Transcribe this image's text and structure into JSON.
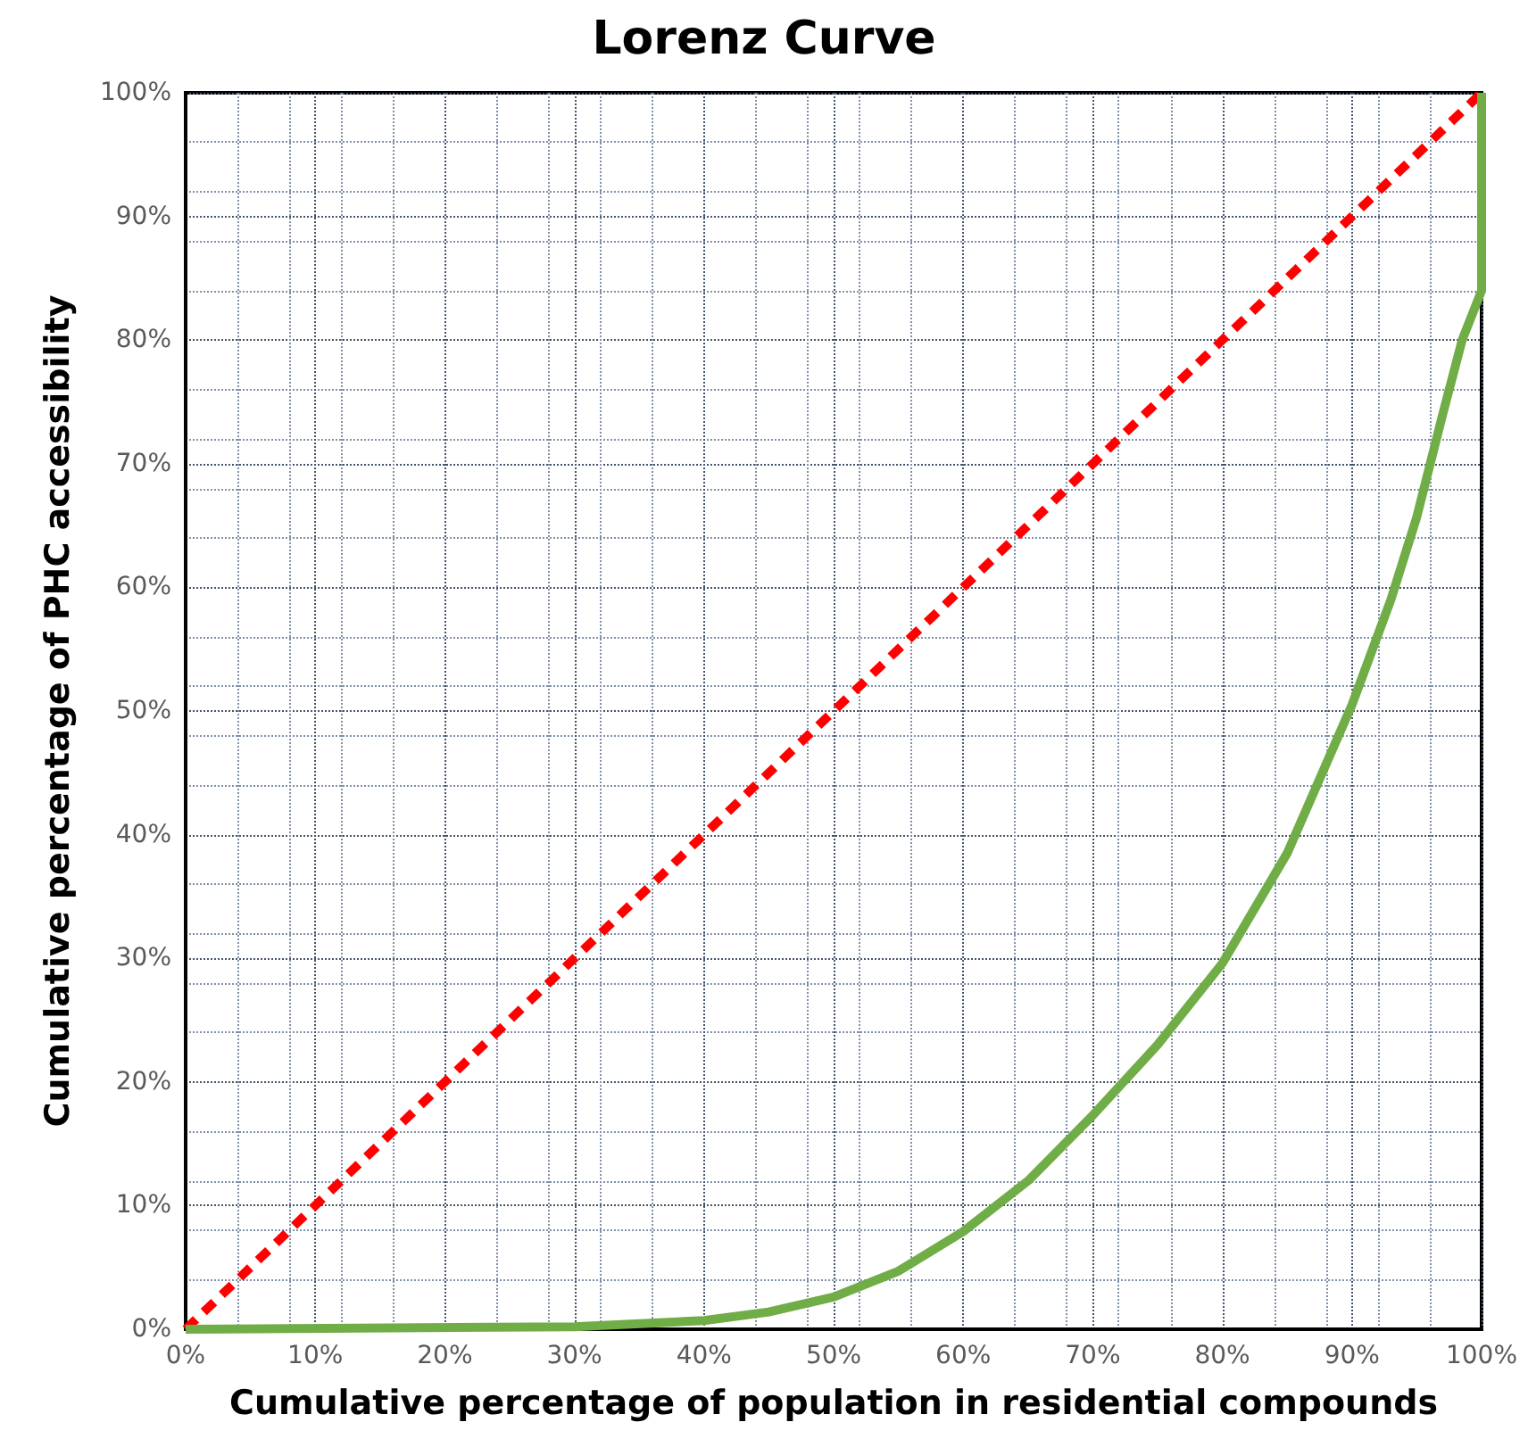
{
  "chart_data": {
    "type": "line",
    "title": "Lorenz Curve",
    "xlabel": "Cumulative percentage of population in residential compounds",
    "ylabel": "Cumulative percentage of PHC accessibility",
    "series": [
      {
        "color": "#ff0000",
        "line_style": "dashed",
        "x": [
          0,
          100
        ],
        "values": [
          0,
          100
        ]
      },
      {
        "color": "#70ad47",
        "line_style": "solid",
        "x": [
          0,
          30,
          40,
          45,
          50,
          55,
          60,
          65,
          70,
          75,
          80,
          85,
          90,
          93,
          95,
          97,
          98.5,
          100,
          100
        ],
        "values": [
          0,
          0.2,
          0.7,
          1.4,
          2.6,
          4.7,
          7.9,
          12,
          17.3,
          23,
          29.6,
          38.5,
          50.5,
          59,
          65.7,
          74,
          80,
          84,
          100
        ]
      }
    ],
    "xlim": [
      0,
      100
    ],
    "xticks": [
      {
        "value": 0,
        "label": "0%"
      },
      {
        "value": 10,
        "label": "10%"
      },
      {
        "value": 20,
        "label": "20%"
      },
      {
        "value": 30,
        "label": "30%"
      },
      {
        "value": 40,
        "label": "40%"
      },
      {
        "value": 50,
        "label": "50%"
      },
      {
        "value": 60,
        "label": "60%"
      },
      {
        "value": 70,
        "label": "70%"
      },
      {
        "value": 80,
        "label": "80%"
      },
      {
        "value": 90,
        "label": "90%"
      },
      {
        "value": 100,
        "label": "100%"
      }
    ],
    "ylim": [
      0,
      100
    ],
    "yticks": [
      {
        "value": 0,
        "label": "0%"
      },
      {
        "value": 10,
        "label": "10%"
      },
      {
        "value": 20,
        "label": "20%"
      },
      {
        "value": 30,
        "label": "30%"
      },
      {
        "value": 40,
        "label": "40%"
      },
      {
        "value": 50,
        "label": "50%"
      },
      {
        "value": 60,
        "label": "60%"
      },
      {
        "value": 70,
        "label": "70%"
      },
      {
        "value": 80,
        "label": "80%"
      },
      {
        "value": 90,
        "label": "90%"
      },
      {
        "value": 100,
        "label": "100%"
      }
    ],
    "grid": true,
    "marker": "none"
  }
}
